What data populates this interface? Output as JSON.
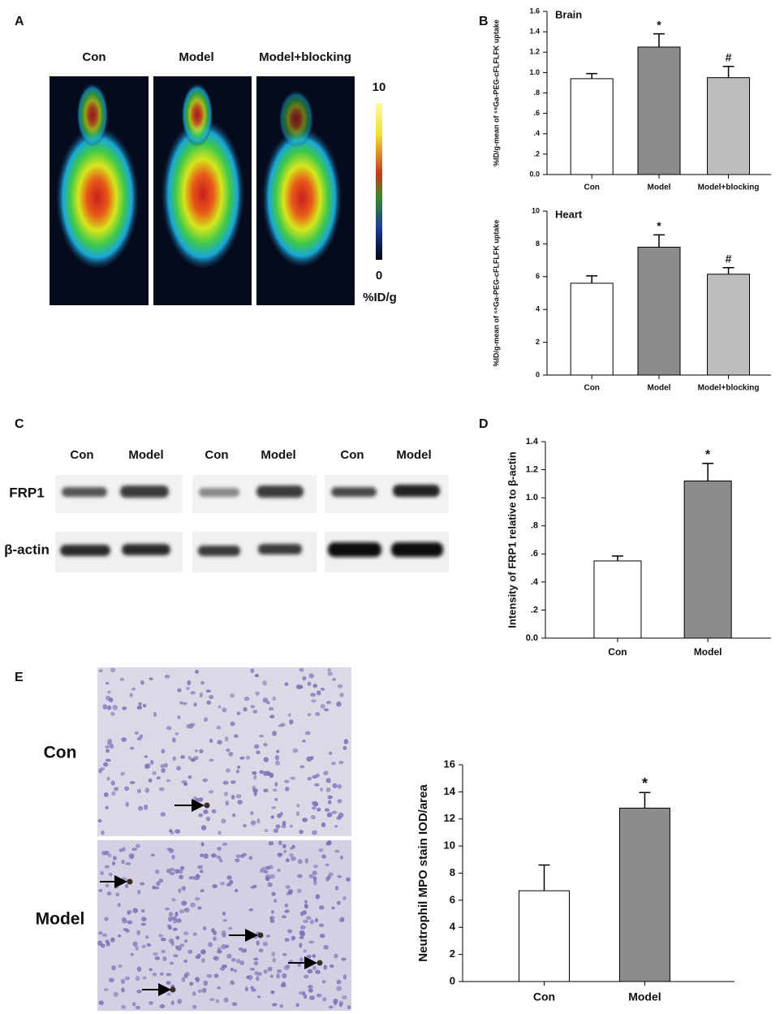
{
  "panel_labels": [
    "A",
    "B",
    "C",
    "D",
    "E"
  ],
  "pet": {
    "labels": [
      "Con",
      "Model",
      "Model+blocking"
    ],
    "scale_ticks": [
      10,
      0
    ],
    "unit": "%ID/g"
  },
  "blot": {
    "lanes": [
      "Con",
      "Model",
      "Con",
      "Model",
      "Con",
      "Model"
    ],
    "rows": [
      "FRP1",
      "β-actin"
    ]
  },
  "histology": {
    "rows": [
      "Con",
      "Model"
    ]
  },
  "chart_data": [
    {
      "type": "bar",
      "title": "Brain",
      "ylabel": "%ID/g-mean of ⁶⁸Ga-PEG-cFLFLFK uptake",
      "categories": [
        "Con",
        "Model",
        "Model+blocking"
      ],
      "values": [
        0.94,
        1.25,
        0.95
      ],
      "errors": [
        0.05,
        0.13,
        0.11
      ],
      "colors": [
        "#ffffff",
        "#8c8c8c",
        "#bdbdbd"
      ],
      "significance": [
        null,
        "*",
        "#"
      ],
      "ylim": [
        0,
        1.6
      ],
      "yticks": [
        {
          "value": 0,
          "label": "0.0"
        },
        {
          "value": 0.2,
          "label": ".2"
        },
        {
          "value": 0.4,
          "label": ".4"
        },
        {
          "value": 0.6,
          "label": ".6"
        },
        {
          "value": 0.8,
          "label": ".8"
        },
        {
          "value": 1,
          "label": "1.0"
        },
        1.2,
        1.4,
        1.6
      ]
    },
    {
      "type": "bar",
      "title": "Heart",
      "ylabel": "%ID/g-mean of ⁶⁸Ga-PEG-cFLFLFK uptake",
      "categories": [
        "Con",
        "Model",
        "Model+blocking"
      ],
      "values": [
        5.6,
        7.8,
        6.15
      ],
      "errors": [
        0.45,
        0.75,
        0.4
      ],
      "colors": [
        "#ffffff",
        "#8c8c8c",
        "#bdbdbd"
      ],
      "significance": [
        null,
        "*",
        "#"
      ],
      "ylim": [
        0,
        10
      ],
      "yticks": [
        0,
        2,
        4,
        6,
        8,
        10
      ]
    },
    {
      "type": "bar",
      "ylabel": "Intensity of FRP1 relative to β-actin",
      "categories": [
        "Con",
        "Model"
      ],
      "values": [
        0.55,
        1.12
      ],
      "errors": [
        0.035,
        0.125
      ],
      "colors": [
        "#ffffff",
        "#8c8c8c"
      ],
      "significance": [
        null,
        "*"
      ],
      "ylim": [
        0,
        1.4
      ],
      "yticks": [
        {
          "value": 0,
          "label": "0.0"
        },
        {
          "value": 0.2,
          "label": ".2"
        },
        {
          "value": 0.4,
          "label": ".4"
        },
        {
          "value": 0.6,
          "label": ".6"
        },
        {
          "value": 0.8,
          "label": ".8"
        },
        {
          "value": 1,
          "label": "1.0"
        },
        1.2,
        1.4
      ]
    },
    {
      "type": "bar",
      "ylabel": "Neutrophil MPO stain IOD/area",
      "categories": [
        "Con",
        "Model"
      ],
      "values": [
        6.7,
        12.8
      ],
      "errors": [
        1.9,
        1.15
      ],
      "colors": [
        "#ffffff",
        "#8c8c8c"
      ],
      "significance": [
        null,
        "*"
      ],
      "ylim": [
        0,
        16
      ],
      "yticks": [
        0,
        2,
        4,
        6,
        8,
        10,
        12,
        14,
        16
      ]
    }
  ]
}
